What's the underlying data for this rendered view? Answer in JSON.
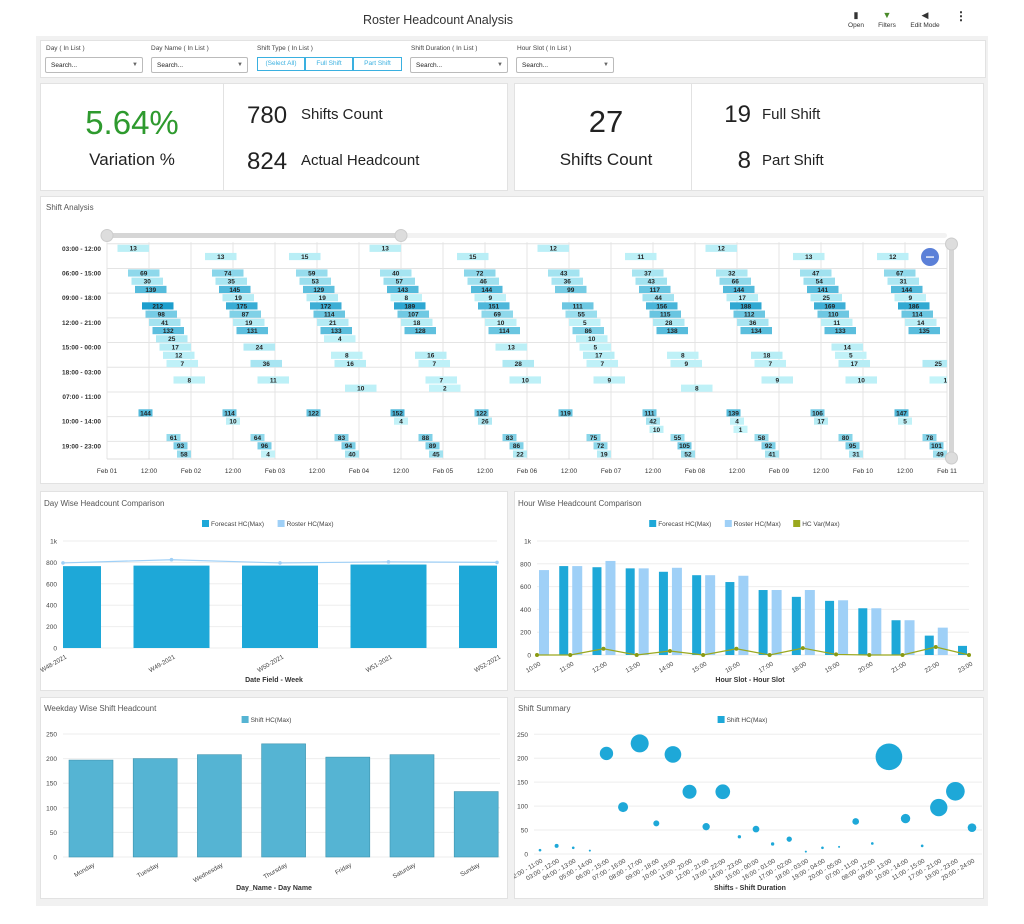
{
  "header": {
    "title": "Roster Headcount Analysis",
    "actions": [
      {
        "label": "Open",
        "icon": "folder-icon"
      },
      {
        "label": "Filters",
        "icon": "filter-icon"
      },
      {
        "label": "Edit Mode",
        "icon": "edit-icon"
      }
    ]
  },
  "filters": {
    "day": {
      "label": "Day ( In List )",
      "placeholder": "Search..."
    },
    "day_name": {
      "label": "Day Name ( In List )",
      "placeholder": "Search..."
    },
    "shift_type": {
      "label": "Shift Type ( In List )",
      "options": [
        "(Select All)",
        "Full Shift",
        "Part Shift"
      ]
    },
    "shift_duration": {
      "label": "Shift Duration ( In List )",
      "placeholder": "Search..."
    },
    "hour_slot": {
      "label": "Hour Slot ( In List )",
      "placeholder": "Search..."
    }
  },
  "kpi": {
    "variation_value": "5.64%",
    "variation_label": "Variation %",
    "shifts_count_value": "780",
    "shifts_count_label": "Shifts Count",
    "actual_headcount_value": "824",
    "actual_headcount_label": "Actual Headcount",
    "total_shifts_value": "27",
    "total_shifts_label": "Shifts Count",
    "full_shift_value": "19",
    "full_shift_label": "Full Shift",
    "part_shift_value": "8",
    "part_shift_label": "Part Shift",
    "accent_green": "#2e9a2e"
  },
  "chart_data": [
    {
      "id": "shift_analysis",
      "type": "gantt",
      "title": "Shift Analysis",
      "x_ticks": [
        "Feb 01",
        "12:00",
        "Feb 02",
        "12:00",
        "Feb 03",
        "12:00",
        "Feb 04",
        "12:00",
        "Feb 05",
        "12:00",
        "Feb 06",
        "12:00",
        "Feb 07",
        "12:00",
        "Feb 08",
        "12:00",
        "Feb 09",
        "12:00",
        "Feb 10",
        "12:00",
        "Feb 11"
      ],
      "y_labels": [
        "03:00 - 12:00",
        "06:00 - 15:00",
        "09:00 - 18:00",
        "12:00 - 21:00",
        "15:00 - 00:00",
        "18:00 - 03:00",
        "07:00 - 11:00",
        "10:00 - 14:00",
        "19:00 - 23:00"
      ],
      "lanes": [
        [
          3,
          9
        ],
        [
          4,
          9
        ],
        [
          5,
          9
        ],
        [
          6,
          9
        ],
        [
          7,
          9
        ],
        [
          8,
          9
        ],
        [
          9,
          9
        ],
        [
          10,
          9
        ],
        [
          11,
          9
        ],
        [
          12,
          9
        ],
        [
          13,
          9
        ],
        [
          14,
          9
        ],
        [
          15,
          9
        ],
        [
          16,
          9
        ],
        [
          17,
          9
        ],
        [
          18,
          9
        ],
        [
          19,
          9
        ],
        [
          20,
          9
        ],
        [
          7,
          4
        ],
        [
          8,
          4
        ],
        [
          9,
          4
        ],
        [
          10,
          4
        ],
        [
          11,
          4
        ],
        [
          17,
          4
        ],
        [
          19,
          4
        ],
        [
          20,
          4
        ]
      ],
      "days": [
        [
          [
            0,
            13
          ],
          [
            3,
            69
          ],
          [
            4,
            30
          ],
          [
            5,
            139
          ],
          [
            7,
            212
          ],
          [
            8,
            98
          ],
          [
            9,
            41
          ],
          [
            10,
            132
          ],
          [
            11,
            25
          ],
          [
            12,
            17
          ],
          [
            13,
            12
          ],
          [
            14,
            7
          ],
          [
            16,
            8
          ],
          [
            20,
            144
          ],
          [
            23,
            61
          ],
          [
            24,
            93
          ],
          [
            25,
            58
          ]
        ],
        [
          [
            1,
            13
          ],
          [
            3,
            74
          ],
          [
            4,
            35
          ],
          [
            5,
            145
          ],
          [
            6,
            19
          ],
          [
            7,
            175
          ],
          [
            8,
            87
          ],
          [
            9,
            19
          ],
          [
            10,
            131
          ],
          [
            12,
            24
          ],
          [
            14,
            36
          ],
          [
            16,
            11
          ],
          [
            20,
            114
          ],
          [
            21,
            10
          ],
          [
            23,
            64
          ],
          [
            24,
            96
          ],
          [
            25,
            4
          ]
        ],
        [
          [
            1,
            15
          ],
          [
            3,
            59
          ],
          [
            4,
            53
          ],
          [
            5,
            129
          ],
          [
            6,
            19
          ],
          [
            7,
            172
          ],
          [
            8,
            114
          ],
          [
            9,
            21
          ],
          [
            10,
            133
          ],
          [
            11,
            4
          ],
          [
            13,
            8
          ],
          [
            14,
            16
          ],
          [
            17,
            10
          ],
          [
            20,
            122
          ],
          [
            23,
            83
          ],
          [
            24,
            94
          ],
          [
            25,
            40
          ]
        ],
        [
          [
            0,
            13
          ],
          [
            3,
            40
          ],
          [
            4,
            57
          ],
          [
            5,
            143
          ],
          [
            6,
            8
          ],
          [
            7,
            189
          ],
          [
            8,
            107
          ],
          [
            9,
            18
          ],
          [
            10,
            128
          ],
          [
            13,
            16
          ],
          [
            14,
            7
          ],
          [
            16,
            7
          ],
          [
            17,
            2
          ],
          [
            20,
            152
          ],
          [
            21,
            4
          ],
          [
            23,
            88
          ],
          [
            24,
            89
          ],
          [
            25,
            45
          ]
        ],
        [
          [
            1,
            15
          ],
          [
            3,
            72
          ],
          [
            4,
            46
          ],
          [
            5,
            144
          ],
          [
            6,
            9
          ],
          [
            7,
            151
          ],
          [
            8,
            69
          ],
          [
            9,
            10
          ],
          [
            10,
            114
          ],
          [
            12,
            13
          ],
          [
            14,
            28
          ],
          [
            16,
            10
          ],
          [
            20,
            122
          ],
          [
            21,
            26
          ],
          [
            23,
            83
          ],
          [
            24,
            86
          ],
          [
            25,
            22
          ]
        ],
        [
          [
            0,
            12
          ],
          [
            3,
            43
          ],
          [
            4,
            36
          ],
          [
            5,
            99
          ],
          [
            7,
            111
          ],
          [
            8,
            55
          ],
          [
            9,
            5
          ],
          [
            10,
            86
          ],
          [
            11,
            10
          ],
          [
            12,
            5
          ],
          [
            13,
            17
          ],
          [
            14,
            7
          ],
          [
            16,
            9
          ],
          [
            20,
            119
          ],
          [
            23,
            75
          ],
          [
            24,
            72
          ],
          [
            25,
            19
          ]
        ],
        [
          [
            1,
            11
          ],
          [
            3,
            37
          ],
          [
            4,
            43
          ],
          [
            5,
            117
          ],
          [
            6,
            44
          ],
          [
            7,
            156
          ],
          [
            8,
            115
          ],
          [
            9,
            28
          ],
          [
            10,
            138
          ],
          [
            13,
            8
          ],
          [
            14,
            9
          ],
          [
            17,
            8
          ],
          [
            20,
            111
          ],
          [
            21,
            42
          ],
          [
            22,
            10
          ],
          [
            23,
            55
          ],
          [
            24,
            105
          ],
          [
            25,
            52
          ]
        ],
        [
          [
            0,
            12
          ],
          [
            3,
            32
          ],
          [
            4,
            66
          ],
          [
            5,
            144
          ],
          [
            6,
            17
          ],
          [
            7,
            188
          ],
          [
            8,
            112
          ],
          [
            9,
            36
          ],
          [
            10,
            134
          ],
          [
            13,
            18
          ],
          [
            14,
            7
          ],
          [
            16,
            9
          ],
          [
            20,
            139
          ],
          [
            21,
            4
          ],
          [
            22,
            1
          ],
          [
            23,
            58
          ],
          [
            24,
            92
          ],
          [
            25,
            41
          ]
        ],
        [
          [
            1,
            13
          ],
          [
            3,
            47
          ],
          [
            4,
            54
          ],
          [
            5,
            141
          ],
          [
            6,
            25
          ],
          [
            7,
            169
          ],
          [
            8,
            110
          ],
          [
            9,
            11
          ],
          [
            10,
            133
          ],
          [
            12,
            14
          ],
          [
            13,
            5
          ],
          [
            14,
            17
          ],
          [
            16,
            10
          ],
          [
            20,
            106
          ],
          [
            21,
            17
          ],
          [
            23,
            80
          ],
          [
            24,
            95
          ],
          [
            25,
            31
          ]
        ],
        [
          [
            1,
            12
          ],
          [
            3,
            67
          ],
          [
            4,
            31
          ],
          [
            5,
            144
          ],
          [
            6,
            9
          ],
          [
            7,
            186
          ],
          [
            8,
            114
          ],
          [
            9,
            14
          ],
          [
            10,
            135
          ],
          [
            14,
            25
          ],
          [
            16,
            1
          ],
          [
            20,
            147
          ],
          [
            21,
            5
          ],
          [
            23,
            78
          ],
          [
            24,
            101
          ],
          [
            25,
            49
          ]
        ]
      ]
    },
    {
      "id": "day_wise",
      "type": "bar+line",
      "title": "Day Wise Headcount Comparison",
      "categories": [
        "W48-2021",
        "W49-2021",
        "W50-2021",
        "W51-2021",
        "W52-2021"
      ],
      "series": [
        {
          "name": "Forecast HC(Max)",
          "type": "bar",
          "color": "#1ea8d8",
          "values": [
            765,
            770,
            770,
            780,
            770
          ]
        },
        {
          "name": "Roster HC(Max)",
          "type": "line",
          "color": "#9fd0f7",
          "values": [
            795,
            825,
            795,
            805,
            800
          ]
        }
      ],
      "y_ticks": [
        "0",
        "200",
        "400",
        "600",
        "800",
        "1k"
      ],
      "ylim": [
        0,
        1000
      ],
      "xlabel": "Date Field - Week"
    },
    {
      "id": "hour_wise",
      "type": "bar+line",
      "title": "Hour Wise Headcount Comparison",
      "categories": [
        "10:00",
        "11:00",
        "12:00",
        "13:00",
        "14:00",
        "15:00",
        "16:00",
        "17:00",
        "18:00",
        "19:00",
        "20:00",
        "21:00",
        "22:00",
        "23:00"
      ],
      "series": [
        {
          "name": "Forecast HC(Max)",
          "type": "bar",
          "color": "#1ea8d8",
          "values": [
            null,
            780,
            770,
            760,
            730,
            700,
            640,
            570,
            510,
            475,
            410,
            305,
            170,
            80
          ]
        },
        {
          "name": "Roster HC(Max)",
          "type": "bar",
          "color": "#9fd0f7",
          "values": [
            745,
            780,
            825,
            760,
            765,
            700,
            695,
            570,
            570,
            480,
            410,
            305,
            240,
            null
          ]
        },
        {
          "name": "HC Var(Max)",
          "type": "line",
          "color": "#9aa81e",
          "values": [
            0,
            0,
            55,
            0,
            35,
            0,
            55,
            0,
            60,
            5,
            0,
            0,
            70,
            0
          ]
        }
      ],
      "y_ticks": [
        "0",
        "200",
        "400",
        "600",
        "800",
        "1k"
      ],
      "ylim": [
        0,
        1000
      ],
      "xlabel": "Hour Slot - Hour Slot"
    },
    {
      "id": "weekday",
      "type": "bar",
      "title": "Weekday Wise Shift Headcount",
      "categories": [
        "Monday",
        "Tuesday",
        "Wednesday",
        "Thursday",
        "Friday",
        "Saturday",
        "Sunday"
      ],
      "series": [
        {
          "name": "Shift HC(Max)",
          "color": "#55b4d3",
          "values": [
            197,
            200,
            208,
            230,
            203,
            208,
            133
          ]
        }
      ],
      "y_ticks": [
        "0",
        "50",
        "100",
        "150",
        "200",
        "250"
      ],
      "ylim": [
        0,
        250
      ],
      "xlabel": "Day_Name - Day Name"
    },
    {
      "id": "shift_summary",
      "type": "scatter",
      "title": "Shift Summary",
      "categories": [
        "02:00 - 11:00",
        "03:00 - 12:00",
        "04:00 - 13:00",
        "05:00 - 14:00",
        "06:00 - 15:00",
        "07:00 - 16:00",
        "08:00 - 17:00",
        "09:00 - 18:00",
        "10:00 - 19:00",
        "11:00 - 20:00",
        "12:00 - 21:00",
        "13:00 - 22:00",
        "14:00 - 23:00",
        "15:00 - 00:00",
        "16:00 - 01:00",
        "17:00 - 02:00",
        "18:00 - 03:00",
        "19:00 - 04:00",
        "20:00 - 05:00",
        "07:00 - 11:00",
        "08:00 - 12:00",
        "09:00 - 13:00",
        "10:00 - 14:00",
        "11:00 - 15:00",
        "17:00 - 21:00",
        "19:00 - 23:00",
        "20:00 - 24:00"
      ],
      "series": [
        {
          "name": "Shift HC(Max)",
          "color": "#1ea8d8",
          "values": [
            8,
            17,
            13,
            7,
            210,
            98,
            231,
            64,
            208,
            130,
            57,
            130,
            36,
            52,
            21,
            31,
            5,
            13,
            15,
            68,
            22,
            203,
            74,
            17,
            97,
            131,
            55
          ],
          "bubble_size": [
            4,
            6,
            4,
            3,
            20,
            15,
            27,
            9,
            25,
            21,
            11,
            22,
            5,
            10,
            5,
            8,
            3,
            4,
            3,
            10,
            4,
            40,
            14,
            4,
            26,
            28,
            13
          ]
        }
      ],
      "y_ticks": [
        "0",
        "50",
        "100",
        "150",
        "200",
        "250"
      ],
      "ylim": [
        0,
        250
      ],
      "xlabel": "Shifts - Shift Duration"
    }
  ]
}
